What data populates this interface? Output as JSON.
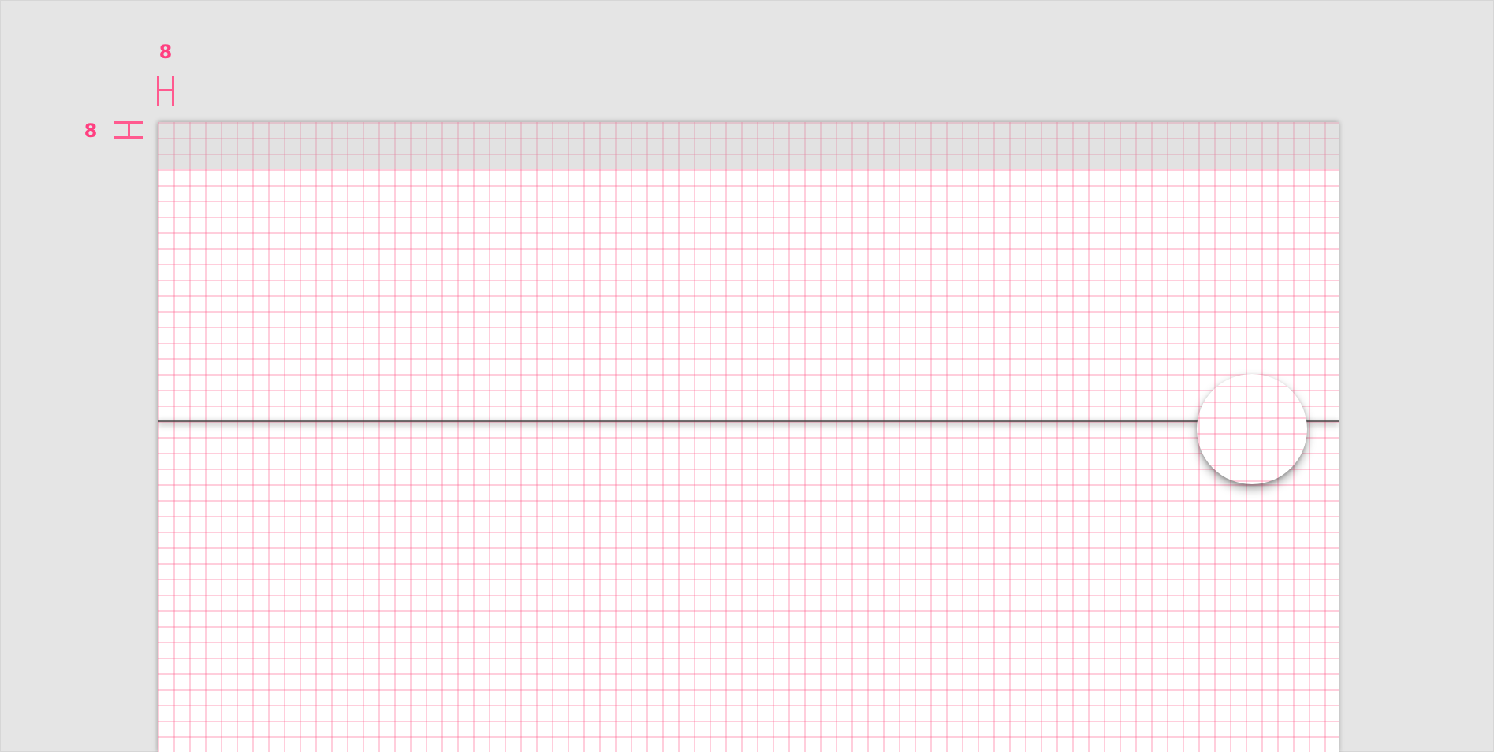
{
  "annotations": {
    "top_spacing": "8",
    "left_spacing": "8",
    "accent_color": "#ff4081"
  }
}
